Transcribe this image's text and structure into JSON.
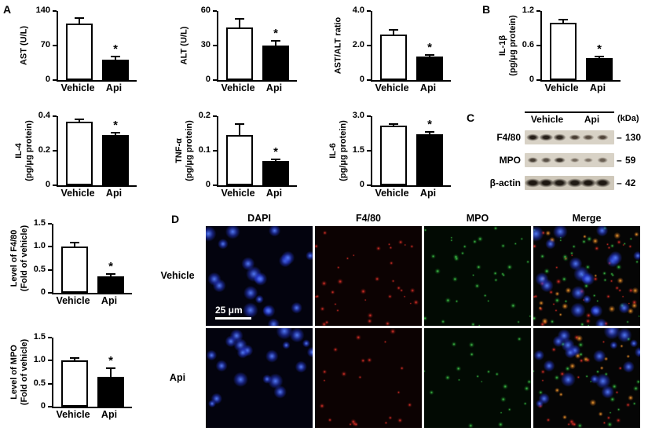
{
  "panel_labels": {
    "a": "A",
    "b": "B",
    "c": "C",
    "d": "D"
  },
  "sig_marker": "*",
  "chart_data": [
    {
      "type": "bar",
      "ylabel_lines": [
        "AST (U/L)"
      ],
      "categories": [
        "Vehicle",
        "Api"
      ],
      "values": [
        115,
        42
      ],
      "errors": [
        12,
        8
      ],
      "ymax": 140,
      "tick_values": [
        0,
        70,
        140
      ],
      "tick_labels": [
        "0",
        "70",
        "140"
      ],
      "bar_colors": [
        "#ffffff",
        "#000000"
      ],
      "sig": [
        false,
        true
      ]
    },
    {
      "type": "bar",
      "ylabel_lines": [
        "ALT (U/L)"
      ],
      "categories": [
        "Vehicle",
        "Api"
      ],
      "values": [
        46,
        30
      ],
      "errors": [
        8,
        5
      ],
      "ymax": 60,
      "tick_values": [
        0,
        30,
        60
      ],
      "tick_labels": [
        "0",
        "30",
        "60"
      ],
      "bar_colors": [
        "#ffffff",
        "#000000"
      ],
      "sig": [
        false,
        true
      ]
    },
    {
      "type": "bar",
      "ylabel_lines": [
        "AST/ALT ratio"
      ],
      "categories": [
        "Vehicle",
        "Api"
      ],
      "values": [
        2.65,
        1.35
      ],
      "errors": [
        0.3,
        0.15
      ],
      "ymax": 4,
      "tick_values": [
        0,
        2,
        4
      ],
      "tick_labels": [
        "0",
        "2.0",
        "4.0"
      ],
      "bar_colors": [
        "#ffffff",
        "#000000"
      ],
      "sig": [
        false,
        true
      ]
    },
    {
      "type": "bar",
      "ylabel_lines": [
        "IL-1β",
        "(pg/μg protein)"
      ],
      "categories": [
        "Vehicle",
        "Api"
      ],
      "values": [
        1.0,
        0.38
      ],
      "errors": [
        0.06,
        0.04
      ],
      "ymax": 1.2,
      "tick_values": [
        0,
        0.6,
        1.2
      ],
      "tick_labels": [
        "0",
        "0.6",
        "1.2"
      ],
      "bar_colors": [
        "#ffffff",
        "#000000"
      ],
      "sig": [
        false,
        true
      ]
    },
    {
      "type": "bar",
      "ylabel_lines": [
        "IL-4",
        "(pg/μg protein)"
      ],
      "categories": [
        "Vehicle",
        "Api"
      ],
      "values": [
        0.37,
        0.29
      ],
      "errors": [
        0.015,
        0.02
      ],
      "ymax": 0.4,
      "tick_values": [
        0,
        0.2,
        0.4
      ],
      "tick_labels": [
        "0",
        "0.2",
        "0.4"
      ],
      "bar_colors": [
        "#ffffff",
        "#000000"
      ],
      "sig": [
        false,
        true
      ]
    },
    {
      "type": "bar",
      "ylabel_lines": [
        "TNF-α",
        "(pg/μg protein)"
      ],
      "categories": [
        "Vehicle",
        "Api"
      ],
      "values": [
        0.145,
        0.07
      ],
      "errors": [
        0.035,
        0.008
      ],
      "ymax": 0.2,
      "tick_values": [
        0,
        0.1,
        0.2
      ],
      "tick_labels": [
        "0",
        "0.1",
        "0.2"
      ],
      "bar_colors": [
        "#ffffff",
        "#000000"
      ],
      "sig": [
        false,
        true
      ]
    },
    {
      "type": "bar",
      "ylabel_lines": [
        "IL-6",
        "(pg/μg protein)"
      ],
      "categories": [
        "Vehicle",
        "Api"
      ],
      "values": [
        2.6,
        2.2
      ],
      "errors": [
        0.08,
        0.15
      ],
      "ymax": 3,
      "tick_values": [
        0,
        1.5,
        3
      ],
      "tick_labels": [
        "0",
        "1.5",
        "3.0"
      ],
      "bar_colors": [
        "#ffffff",
        "#000000"
      ],
      "sig": [
        false,
        true
      ]
    },
    {
      "type": "bar",
      "ylabel_lines": [
        "Level of F4/80",
        "(Fold of vehicle)"
      ],
      "categories": [
        "Vehicle",
        "Api"
      ],
      "values": [
        1.0,
        0.35
      ],
      "errors": [
        0.1,
        0.08
      ],
      "ymax": 1.5,
      "tick_values": [
        0,
        0.5,
        1.0,
        1.5
      ],
      "tick_labels": [
        "0",
        "0.5",
        "1.0",
        "1.5"
      ],
      "bar_colors": [
        "#ffffff",
        "#000000"
      ],
      "sig": [
        false,
        true
      ]
    },
    {
      "type": "bar",
      "ylabel_lines": [
        "Level of MPO",
        "(Fold of vehicle)"
      ],
      "categories": [
        "Vehicle",
        "Api"
      ],
      "values": [
        1.0,
        0.65
      ],
      "errors": [
        0.07,
        0.2
      ],
      "ymax": 1.5,
      "tick_values": [
        0,
        0.5,
        1.0,
        1.5
      ],
      "tick_labels": [
        "0",
        "0.5",
        "1.0",
        "1.5"
      ],
      "bar_colors": [
        "#ffffff",
        "#000000"
      ],
      "sig": [
        false,
        true
      ]
    }
  ],
  "blot": {
    "header_groups": [
      "Vehicle",
      "Api"
    ],
    "kda_label": "(kDa)",
    "kda_dash": "–",
    "rows": [
      {
        "label": "F4/80",
        "kda": "130"
      },
      {
        "label": "MPO",
        "kda": "59"
      },
      {
        "label": "β-actin",
        "kda": "42"
      }
    ]
  },
  "microscopy": {
    "columns": [
      "DAPI",
      "F4/80",
      "MPO",
      "Merge"
    ],
    "rows": [
      "Vehicle",
      "Api"
    ],
    "scale_bar": "25 μm"
  }
}
